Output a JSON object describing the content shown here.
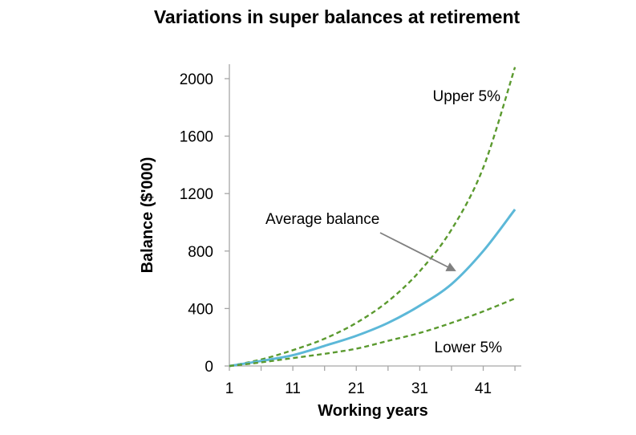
{
  "chart_data": {
    "type": "line",
    "title": "Variations in super balances at retirement",
    "xlabel": "Working years",
    "ylabel": "Balance ($'000)",
    "xlim": [
      1,
      47
    ],
    "ylim": [
      0,
      2000
    ],
    "x_ticks": [
      1,
      11,
      21,
      31,
      41
    ],
    "y_ticks": [
      0,
      400,
      800,
      1200,
      1600,
      2000
    ],
    "grid": false,
    "legend": "none",
    "x": [
      1,
      6,
      11,
      16,
      21,
      26,
      31,
      36,
      41,
      46
    ],
    "series": [
      {
        "name": "Upper 5%",
        "style": "dashed",
        "color": "#5b9a2f",
        "values": [
          0,
          45,
          110,
          190,
          300,
          450,
          660,
          950,
          1380,
          2080
        ]
      },
      {
        "name": "Average balance",
        "style": "solid",
        "color": "#5cb8d8",
        "values": [
          0,
          35,
          75,
          140,
          210,
          300,
          420,
          570,
          800,
          1090
        ]
      },
      {
        "name": "Lower 5%",
        "style": "dashed",
        "color": "#5b9a2f",
        "values": [
          0,
          25,
          55,
          85,
          120,
          175,
          230,
          300,
          380,
          470
        ]
      }
    ],
    "annotations": {
      "upper": "Upper 5%",
      "average": "Average balance",
      "lower": "Lower 5%"
    }
  },
  "colors": {
    "axis": "#a6a6a6",
    "arrow": "#808080"
  }
}
